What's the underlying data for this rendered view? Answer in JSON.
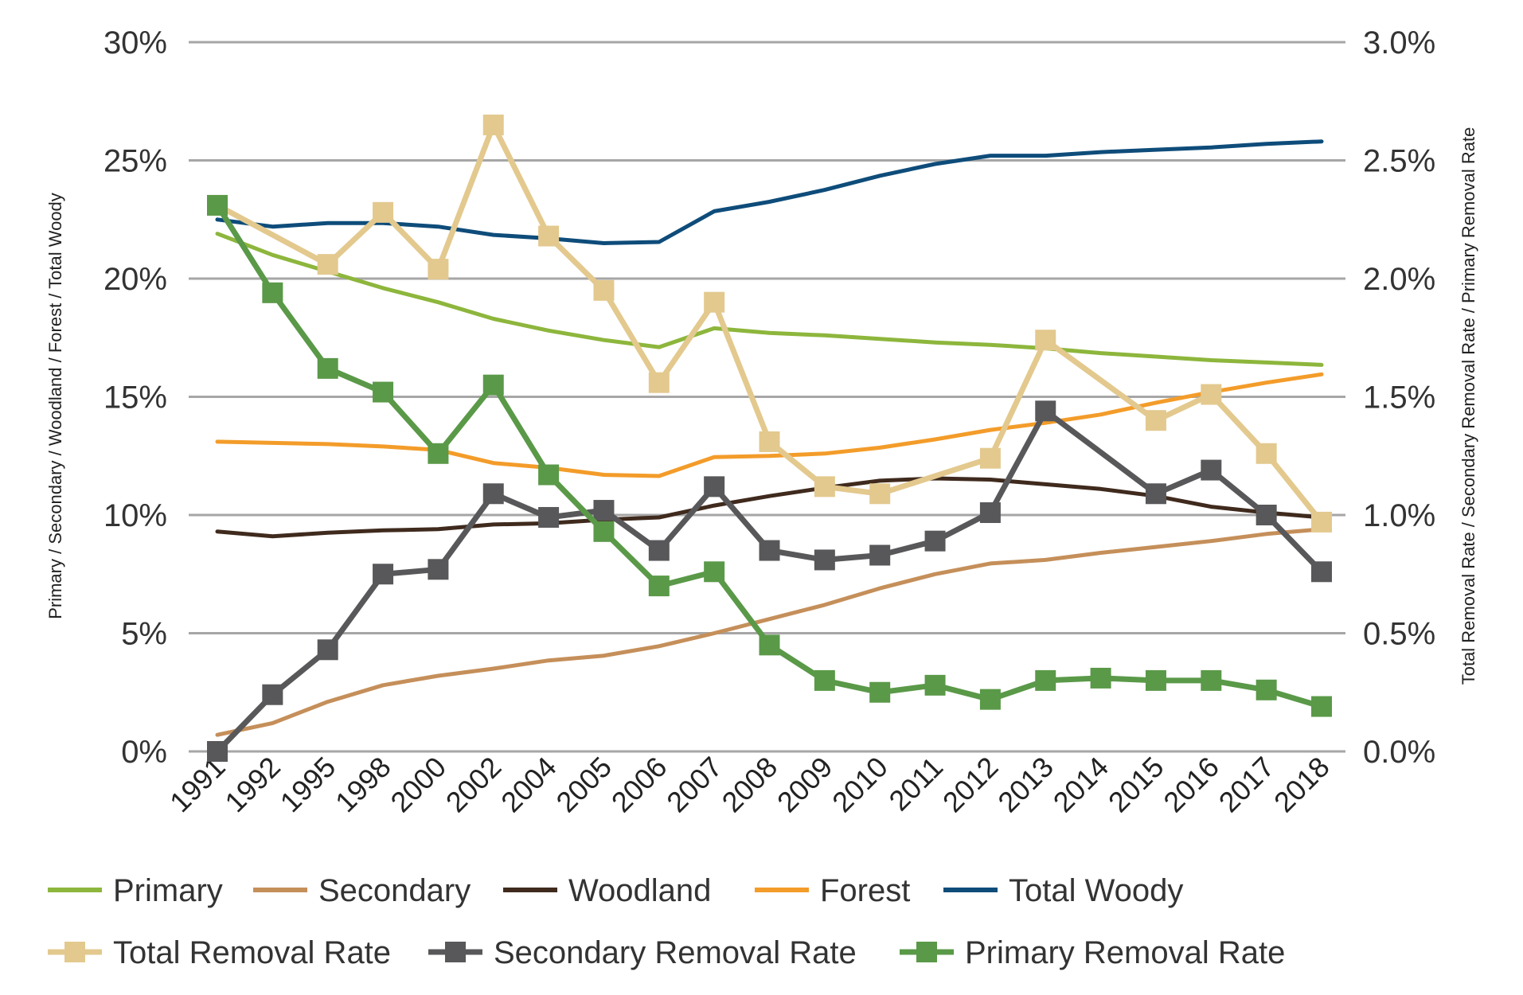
{
  "chart_data": {
    "type": "line",
    "categories": [
      "1991",
      "1992",
      "1995",
      "1998",
      "2000",
      "2002",
      "2004",
      "2005",
      "2006",
      "2007",
      "2008",
      "2009",
      "2010",
      "2011",
      "2012",
      "2013",
      "2014",
      "2015",
      "2016",
      "2017",
      "2018"
    ],
    "left_axis": {
      "label": "Primary / Secondary / Woodland / Forest / Total Woody",
      "ylim": [
        0,
        30
      ],
      "ticks": [
        "0%",
        "5%",
        "10%",
        "15%",
        "20%",
        "25%",
        "30%"
      ],
      "tick_values": [
        0,
        5,
        10,
        15,
        20,
        25,
        30
      ]
    },
    "right_axis": {
      "label": "Total Removal Rate / Secondary Removal Rate / Primary Removal Rate",
      "ylim": [
        0,
        3
      ],
      "ticks": [
        "0.0%",
        "0.5%",
        "1.0%",
        "1.5%",
        "2.0%",
        "2.5%",
        "3.0%"
      ],
      "tick_values": [
        0,
        0.5,
        1.0,
        1.5,
        2.0,
        2.5,
        3.0
      ]
    },
    "grid": true,
    "legend_position": "bottom",
    "series": [
      {
        "name": "Primary",
        "axis": "left",
        "color": "#8DB63C",
        "marker": false,
        "values": [
          21.9,
          21.0,
          20.3,
          19.6,
          19.0,
          18.3,
          17.8,
          17.4,
          17.1,
          17.9,
          17.7,
          17.6,
          17.45,
          17.3,
          17.2,
          17.05,
          16.85,
          16.7,
          16.55,
          16.45,
          16.35
        ]
      },
      {
        "name": "Secondary",
        "axis": "left",
        "color": "#C58F5A",
        "marker": false,
        "values": [
          0.7,
          1.2,
          2.1,
          2.8,
          3.2,
          3.5,
          3.85,
          4.05,
          4.45,
          5.0,
          5.6,
          6.2,
          6.9,
          7.5,
          7.95,
          8.1,
          8.4,
          8.65,
          8.9,
          9.2,
          9.4
        ]
      },
      {
        "name": "Woodland",
        "axis": "left",
        "color": "#3F2A1D",
        "marker": false,
        "values": [
          9.3,
          9.1,
          9.25,
          9.35,
          9.4,
          9.6,
          9.65,
          9.8,
          9.9,
          10.4,
          10.8,
          11.15,
          11.45,
          11.55,
          11.5,
          11.3,
          11.1,
          10.8,
          10.35,
          10.1,
          9.9
        ]
      },
      {
        "name": "Forest",
        "axis": "left",
        "color": "#F39C2A",
        "marker": false,
        "values": [
          13.1,
          13.05,
          13.0,
          12.9,
          12.75,
          12.2,
          12.0,
          11.7,
          11.65,
          12.45,
          12.5,
          12.6,
          12.85,
          13.2,
          13.6,
          13.9,
          14.25,
          14.75,
          15.2,
          15.6,
          15.95
        ]
      },
      {
        "name": "Total Woody",
        "axis": "left",
        "color": "#0E4C7A",
        "marker": false,
        "values": [
          22.5,
          22.2,
          22.35,
          22.35,
          22.2,
          21.85,
          21.7,
          21.5,
          21.55,
          22.85,
          23.25,
          23.75,
          24.35,
          24.85,
          25.2,
          25.2,
          25.35,
          25.45,
          25.55,
          25.7,
          25.8
        ]
      },
      {
        "name": "Total Removal Rate",
        "axis": "right",
        "color": "#E3C98E",
        "marker": true,
        "values": [
          2.31,
          null,
          2.06,
          2.28,
          2.04,
          2.65,
          2.18,
          1.95,
          1.56,
          1.9,
          1.31,
          1.12,
          1.09,
          null,
          1.24,
          1.74,
          null,
          1.4,
          1.51,
          1.26,
          0.97
        ]
      },
      {
        "name": "Secondary Removal Rate",
        "axis": "right",
        "color": "#58585A",
        "marker": true,
        "values": [
          0.0,
          0.24,
          0.43,
          0.75,
          0.77,
          1.09,
          0.99,
          1.02,
          0.85,
          1.12,
          0.85,
          0.81,
          0.83,
          0.89,
          1.01,
          1.44,
          null,
          1.09,
          1.19,
          1.0,
          0.76
        ]
      },
      {
        "name": "Primary Removal Rate",
        "axis": "right",
        "color": "#5A9948",
        "marker": true,
        "values": [
          2.31,
          1.94,
          1.62,
          1.52,
          1.26,
          1.55,
          1.17,
          0.93,
          0.7,
          0.76,
          0.45,
          0.3,
          0.25,
          0.28,
          0.22,
          0.3,
          0.31,
          0.3,
          0.3,
          0.26,
          0.19
        ]
      }
    ]
  }
}
